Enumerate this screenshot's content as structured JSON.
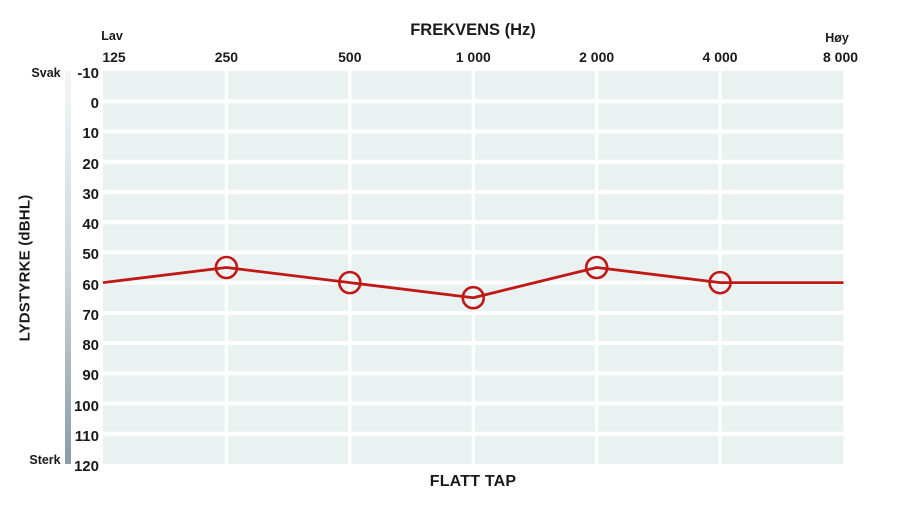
{
  "chart_data": {
    "type": "line",
    "title": "FREKVENS (Hz)",
    "caption": "FLATT TAP",
    "ylabel": "LYDSTYRKE (dBHL)",
    "x_end_labels": {
      "left": "Lav",
      "right": "Høy"
    },
    "y_end_labels": {
      "top": "Svak",
      "bottom": "Sterk"
    },
    "categories": [
      "125",
      "250",
      "500",
      "1 000",
      "2 000",
      "4 000",
      "8 000"
    ],
    "frequencies_hz": [
      125,
      250,
      500,
      1000,
      2000,
      4000,
      8000
    ],
    "series": [
      {
        "name": "hearing-threshold",
        "values_db": [
          60,
          55,
          60,
          65,
          55,
          60,
          60
        ],
        "marker_indices": [
          1,
          2,
          3,
          4,
          5
        ]
      }
    ],
    "ylim": [
      -10,
      120
    ],
    "ytick_step": 10,
    "grid": true,
    "colors": {
      "line": "#c01717",
      "plot_bg": "#e9f2f1",
      "grid": "#ffffff",
      "bar_top": "#f3f6f8",
      "bar_bottom": "#8a9aa9",
      "text": "#1a1a1a"
    }
  }
}
